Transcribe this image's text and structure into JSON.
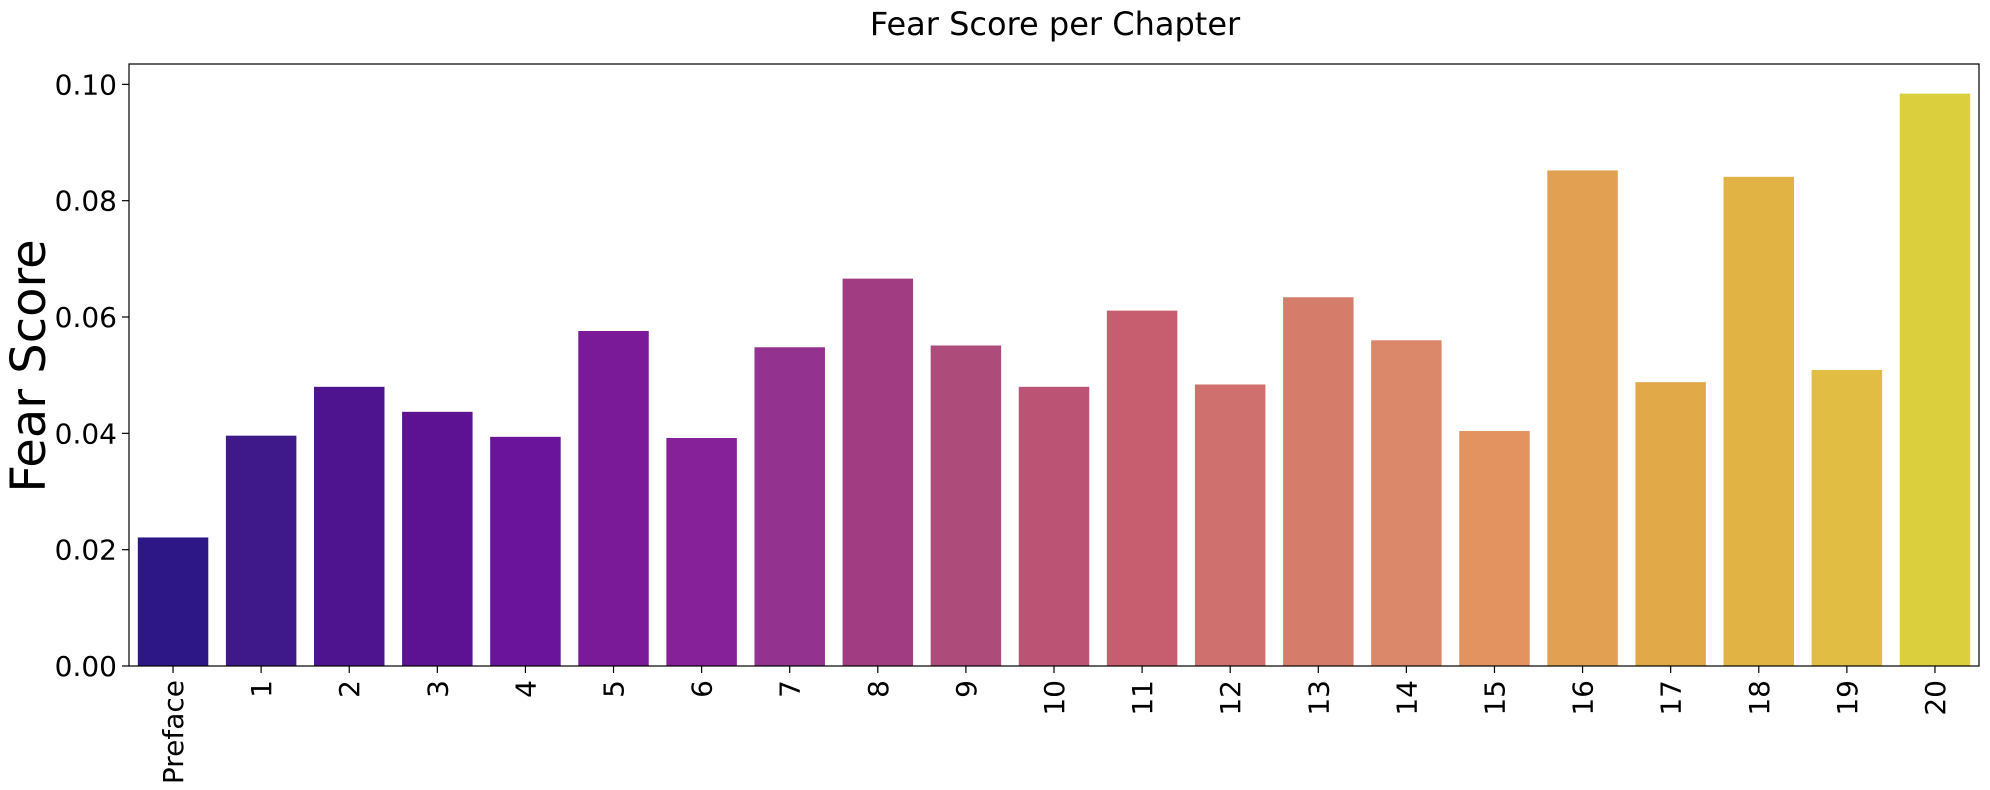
{
  "chart_data": {
    "type": "bar",
    "title": "Fear Score per Chapter",
    "xlabel": "",
    "ylabel": "Fear Score",
    "categories": [
      "Preface",
      "1",
      "2",
      "3",
      "4",
      "5",
      "6",
      "7",
      "8",
      "9",
      "10",
      "11",
      "12",
      "13",
      "14",
      "15",
      "16",
      "17",
      "18",
      "19",
      "20"
    ],
    "values": [
      0.0221,
      0.0396,
      0.048,
      0.0437,
      0.0394,
      0.0576,
      0.0392,
      0.0548,
      0.0666,
      0.0551,
      0.048,
      0.0611,
      0.0484,
      0.0634,
      0.056,
      0.0404,
      0.0852,
      0.0488,
      0.0841,
      0.0509,
      0.0984
    ],
    "colors": [
      "#2d1686",
      "#3f1889",
      "#4e148f",
      "#5d1193",
      "#6a149b",
      "#7a1a98",
      "#87219a",
      "#943290",
      "#a13c82",
      "#ad4b7b",
      "#bb5375",
      "#c65e70",
      "#cf706e",
      "#d67c6b",
      "#db876a",
      "#e29360",
      "#e2a052",
      "#e2a948",
      "#e1b244",
      "#e1bd43",
      "#dccf3d"
    ],
    "ylim": [
      0,
      0.1035
    ],
    "yticks": [
      "0.00",
      "0.02",
      "0.04",
      "0.06",
      "0.08",
      "0.10"
    ],
    "ytick_values": [
      0,
      0.02,
      0.04,
      0.06,
      0.08,
      0.1
    ],
    "grid": false,
    "legend": "none"
  }
}
